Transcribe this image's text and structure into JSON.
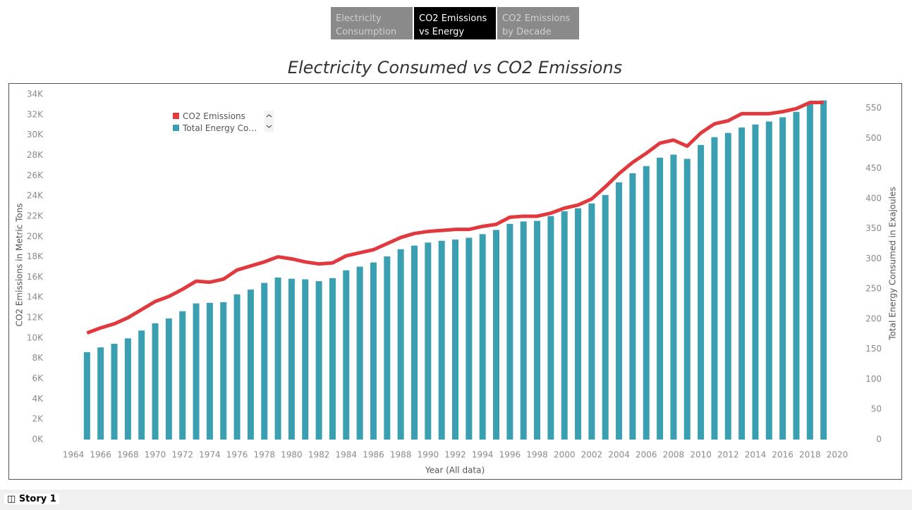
{
  "tabs": [
    "Electricity Consumption",
    "CO2 Emissions vs Energy",
    "CO2 Emissions by Decade"
  ],
  "active_tab": 1,
  "story": "Story 1",
  "chart_data": {
    "type": "combo",
    "title": "Electricity Consumed vs CO2 Emissions",
    "x_label": "Year (All data)",
    "y_label": "CO2 Emissions in Metric Tons",
    "y2_label": "Total Energy Consumed in Exajoules",
    "x": [
      1965,
      1966,
      1967,
      1968,
      1969,
      1970,
      1971,
      1972,
      1973,
      1974,
      1975,
      1976,
      1977,
      1978,
      1979,
      1980,
      1981,
      1982,
      1983,
      1984,
      1985,
      1986,
      1987,
      1988,
      1989,
      1990,
      1991,
      1992,
      1993,
      1994,
      1995,
      1996,
      1997,
      1998,
      1999,
      2000,
      2001,
      2002,
      2003,
      2004,
      2005,
      2006,
      2007,
      2008,
      2009,
      2010,
      2011,
      2012,
      2013,
      2014,
      2015,
      2016,
      2017,
      2018,
      2019
    ],
    "series": [
      {
        "name": "CO2 Emissions",
        "type": "line",
        "color": "#e03a3e",
        "values": [
          10500,
          11000,
          11400,
          12000,
          12800,
          13600,
          14100,
          14800,
          15600,
          15500,
          15800,
          16700,
          17100,
          17500,
          18000,
          17800,
          17500,
          17300,
          17400,
          18100,
          18400,
          18700,
          19300,
          19900,
          20300,
          20500,
          20600,
          20700,
          20700,
          21000,
          21200,
          21900,
          22000,
          22000,
          22300,
          22800,
          23100,
          23700,
          24900,
          26200,
          27300,
          28200,
          29200,
          29500,
          28900,
          30200,
          31100,
          31400,
          32100,
          32100,
          32100,
          32300,
          32600,
          33200,
          33200
        ]
      },
      {
        "name": "Total Energy Consumed",
        "type": "bar",
        "axis": "y2",
        "color": "#3a9fb0",
        "values": [
          145,
          153,
          159,
          168,
          181,
          193,
          201,
          213,
          226,
          227,
          228,
          241,
          249,
          260,
          269,
          267,
          266,
          263,
          268,
          281,
          287,
          294,
          304,
          316,
          322,
          327,
          330,
          332,
          335,
          341,
          348,
          358,
          362,
          363,
          371,
          379,
          384,
          392,
          406,
          427,
          442,
          454,
          468,
          473,
          466,
          489,
          502,
          509,
          518,
          523,
          528,
          535,
          544,
          558,
          563
        ]
      }
    ],
    "xlim": [
      1964,
      2020
    ],
    "xticks": [
      1964,
      1966,
      1968,
      1970,
      1972,
      1974,
      1976,
      1978,
      1980,
      1982,
      1984,
      1986,
      1988,
      1990,
      1992,
      1994,
      1996,
      1998,
      2000,
      2002,
      2004,
      2006,
      2008,
      2010,
      2012,
      2014,
      2016,
      2018,
      2020
    ],
    "ylim": [
      0,
      34000
    ],
    "yticks": [
      {
        "value": 0,
        "label": "0K"
      },
      {
        "value": 2000,
        "label": "2K"
      },
      {
        "value": 4000,
        "label": "4K"
      },
      {
        "value": 6000,
        "label": "6K"
      },
      {
        "value": 8000,
        "label": "8K"
      },
      {
        "value": 10000,
        "label": "10K"
      },
      {
        "value": 12000,
        "label": "12K"
      },
      {
        "value": 14000,
        "label": "14K"
      },
      {
        "value": 16000,
        "label": "16K"
      },
      {
        "value": 18000,
        "label": "18K"
      },
      {
        "value": 20000,
        "label": "20K"
      },
      {
        "value": 22000,
        "label": "22K"
      },
      {
        "value": 24000,
        "label": "24K"
      },
      {
        "value": 26000,
        "label": "26K"
      },
      {
        "value": 28000,
        "label": "28K"
      },
      {
        "value": 30000,
        "label": "30K"
      },
      {
        "value": 32000,
        "label": "32K"
      },
      {
        "value": 34000,
        "label": "34K"
      }
    ],
    "y2lim": [
      0,
      573
    ],
    "y2ticks": [
      0,
      50,
      100,
      150,
      200,
      250,
      300,
      350,
      400,
      450,
      500,
      550
    ],
    "grid": false
  }
}
